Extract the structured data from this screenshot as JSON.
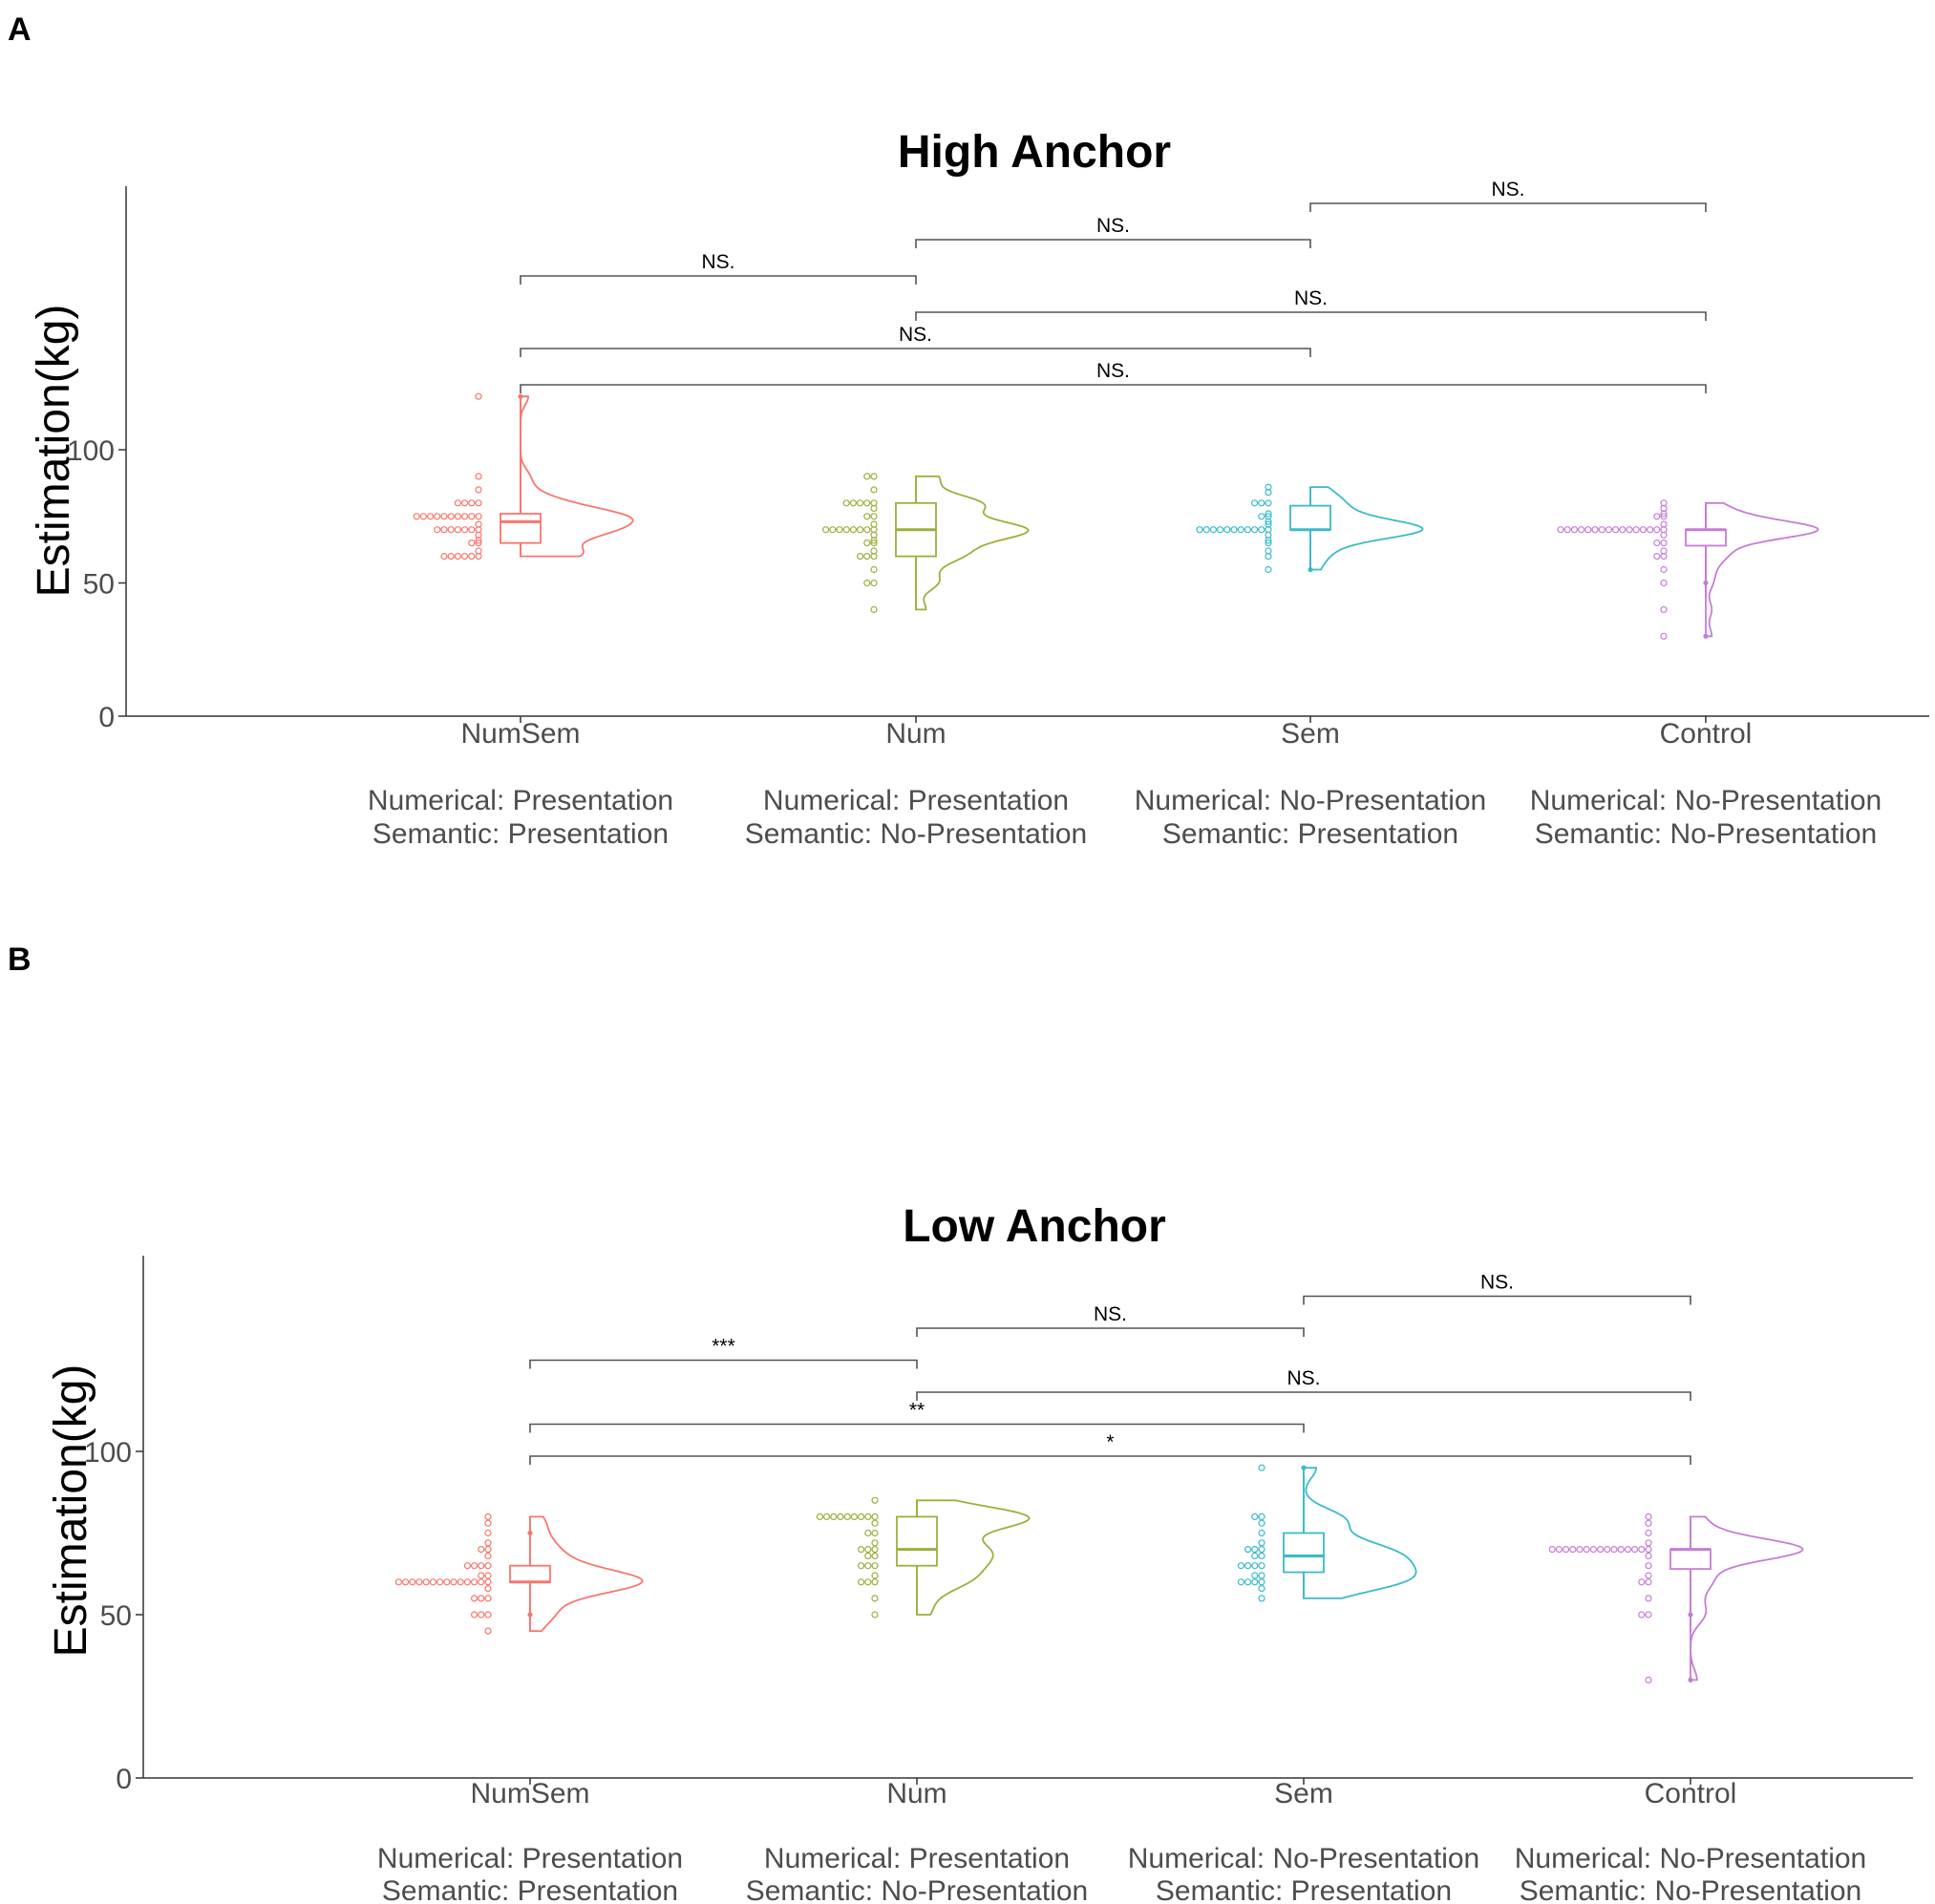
{
  "chart_data": [
    {
      "panel": "A",
      "type": "raincloud",
      "title": "High Anchor",
      "ylabel": "Estimation(kg)",
      "yticks": [
        0,
        50,
        100
      ],
      "ylim": [
        0,
        200
      ],
      "groups": [
        {
          "category": "NumSem",
          "condition": [
            "Numerical: Presentation",
            "Semantic: Presentation"
          ],
          "color": "#F8766D",
          "points": [
            120,
            90,
            85,
            80,
            80,
            80,
            80,
            75,
            75,
            75,
            75,
            75,
            75,
            75,
            75,
            75,
            75,
            72,
            70,
            70,
            70,
            70,
            70,
            70,
            70,
            68,
            66,
            65,
            65,
            62,
            60,
            60,
            60,
            60,
            60,
            60
          ],
          "box": {
            "min": 60,
            "q1": 65,
            "median": 73,
            "q3": 76,
            "max": 120
          },
          "outliers": [
            120
          ]
        },
        {
          "category": "Num",
          "condition": [
            "Numerical: Presentation",
            "Semantic: No-Presentation"
          ],
          "color": "#9AB03C",
          "points": [
            90,
            90,
            85,
            80,
            80,
            80,
            80,
            80,
            78,
            75,
            75,
            72,
            70,
            70,
            70,
            70,
            70,
            70,
            70,
            70,
            68,
            66,
            65,
            65,
            62,
            60,
            60,
            60,
            55,
            50,
            50,
            40
          ],
          "box": {
            "min": 40,
            "q1": 60,
            "median": 70,
            "q3": 80,
            "max": 90
          },
          "outliers": []
        },
        {
          "category": "Sem",
          "condition": [
            "Numerical: No-Presentation",
            "Semantic: Presentation"
          ],
          "color": "#3BBAC9",
          "points": [
            86,
            84,
            80,
            80,
            80,
            76,
            75,
            75,
            73,
            72,
            70,
            70,
            70,
            70,
            70,
            70,
            70,
            70,
            70,
            70,
            70,
            68,
            66,
            65,
            62,
            60,
            55
          ],
          "box": {
            "min": 55,
            "q1": 70,
            "median": 70,
            "q3": 79,
            "max": 86
          },
          "outliers": [
            55
          ]
        },
        {
          "category": "Control",
          "condition": [
            "Numerical: No-Presentation",
            "Semantic: No-Presentation"
          ],
          "color": "#C77CD6",
          "points": [
            80,
            78,
            76,
            75,
            75,
            72,
            70,
            70,
            70,
            70,
            70,
            70,
            70,
            70,
            70,
            70,
            70,
            70,
            70,
            70,
            70,
            70,
            68,
            65,
            65,
            62,
            60,
            60,
            55,
            50,
            40,
            30
          ],
          "box": {
            "min": 45,
            "q1": 64,
            "median": 70,
            "q3": 70,
            "max": 80
          },
          "outliers": [
            50,
            30
          ]
        }
      ],
      "comparisons": [
        {
          "from": "NumSem",
          "to": "Num",
          "label": "NS.",
          "level": 3
        },
        {
          "from": "Num",
          "to": "Sem",
          "label": "NS.",
          "level": 4
        },
        {
          "from": "Sem",
          "to": "Control",
          "label": "NS.",
          "level": 5
        },
        {
          "from": "Num",
          "to": "Control",
          "label": "NS.",
          "level": 2
        },
        {
          "from": "NumSem",
          "to": "Sem",
          "label": "NS.",
          "level": 1
        },
        {
          "from": "NumSem",
          "to": "Control",
          "label": "NS.",
          "level": 0
        }
      ]
    },
    {
      "panel": "B",
      "type": "raincloud",
      "title": "Low Anchor",
      "ylabel": "Estimation(kg)",
      "yticks": [
        0,
        50,
        100
      ],
      "ylim": [
        0,
        160
      ],
      "groups": [
        {
          "category": "NumSem",
          "condition": [
            "Numerical: Presentation",
            "Semantic: Presentation"
          ],
          "color": "#F8766D",
          "points": [
            80,
            78,
            75,
            72,
            70,
            70,
            68,
            65,
            65,
            65,
            65,
            62,
            62,
            60,
            60,
            60,
            60,
            60,
            60,
            60,
            60,
            60,
            60,
            60,
            60,
            60,
            60,
            58,
            55,
            55,
            55,
            50,
            50,
            50,
            45
          ],
          "box": {
            "min": 45,
            "q1": 60,
            "median": 60,
            "q3": 65,
            "max": 80
          },
          "outliers": [
            75,
            50
          ]
        },
        {
          "category": "Num",
          "condition": [
            "Numerical: Presentation",
            "Semantic: No-Presentation"
          ],
          "color": "#9AB03C",
          "points": [
            85,
            80,
            80,
            80,
            80,
            80,
            80,
            80,
            80,
            80,
            78,
            75,
            75,
            72,
            70,
            70,
            70,
            68,
            68,
            65,
            65,
            65,
            62,
            60,
            60,
            60,
            55,
            50
          ],
          "box": {
            "min": 50,
            "q1": 65,
            "median": 70,
            "q3": 80,
            "max": 85
          },
          "outliers": []
        },
        {
          "category": "Sem",
          "condition": [
            "Numerical: No-Presentation",
            "Semantic: Presentation"
          ],
          "color": "#3BBAC9",
          "points": [
            95,
            80,
            80,
            78,
            75,
            72,
            70,
            70,
            70,
            68,
            68,
            65,
            65,
            65,
            65,
            62,
            62,
            60,
            60,
            60,
            60,
            58,
            55
          ],
          "box": {
            "min": 55,
            "q1": 63,
            "median": 68,
            "q3": 75,
            "max": 95
          },
          "outliers": [
            95
          ]
        },
        {
          "category": "Control",
          "condition": [
            "Numerical: No-Presentation",
            "Semantic: No-Presentation"
          ],
          "color": "#C77CD6",
          "points": [
            80,
            78,
            75,
            72,
            70,
            70,
            70,
            70,
            70,
            70,
            70,
            70,
            70,
            70,
            70,
            70,
            70,
            70,
            70,
            68,
            65,
            62,
            60,
            60,
            55,
            50,
            50,
            30
          ],
          "box": {
            "min": 45,
            "q1": 64,
            "median": 70,
            "q3": 70,
            "max": 80
          },
          "outliers": [
            50,
            30
          ]
        }
      ],
      "comparisons": [
        {
          "from": "Sem",
          "to": "Control",
          "label": "NS.",
          "level": 5
        },
        {
          "from": "Num",
          "to": "Sem",
          "label": "NS.",
          "level": 4
        },
        {
          "from": "NumSem",
          "to": "Num",
          "label": "***",
          "level": 3
        },
        {
          "from": "Num",
          "to": "Control",
          "label": "NS.",
          "level": 2
        },
        {
          "from": "NumSem",
          "to": "Sem",
          "label": "**",
          "level": 1
        },
        {
          "from": "NumSem",
          "to": "Control",
          "label": "*",
          "level": 0
        }
      ]
    }
  ]
}
